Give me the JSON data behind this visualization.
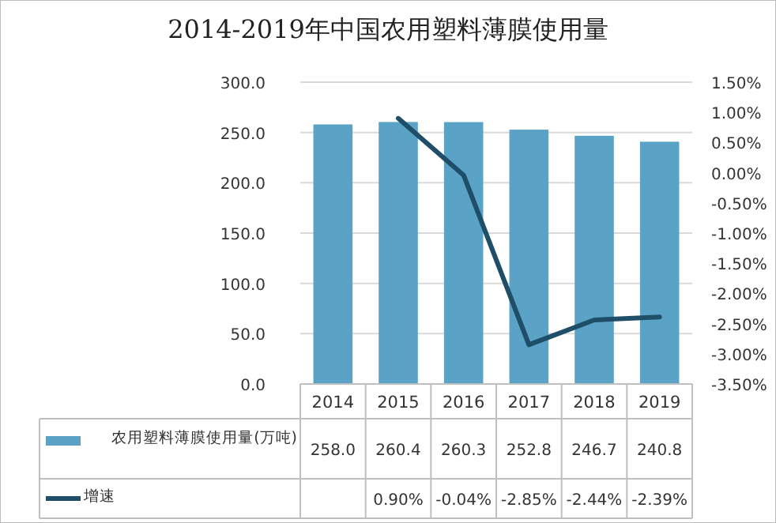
{
  "chart_data": {
    "type": "bar",
    "title": "2014-2019年中国农用塑料薄膜使用量",
    "categories": [
      "2014",
      "2015",
      "2016",
      "2017",
      "2018",
      "2019"
    ],
    "series": [
      {
        "name": "农用塑料薄膜使用量(万吨)",
        "color": "#5aa3c6",
        "values": [
          258.0,
          260.4,
          260.3,
          252.8,
          246.7,
          240.8
        ],
        "value_labels": [
          "258.0",
          "260.4",
          "260.3",
          "252.8",
          "246.7",
          "240.8"
        ]
      },
      {
        "name": "增速",
        "type": "line",
        "axis": "y2",
        "color": "#1f4e69",
        "values": [
          null,
          0.9,
          -0.04,
          -2.85,
          -2.44,
          -2.39
        ],
        "value_labels": [
          null,
          "0.90%",
          "-0.04%",
          "-2.85%",
          "-2.44%",
          "-2.39%"
        ]
      }
    ],
    "ylim": [
      0,
      300
    ],
    "yticks": [
      {
        "value": 0,
        "label": "0.0"
      },
      {
        "value": 50,
        "label": "50.0"
      },
      {
        "value": 100,
        "label": "100.0"
      },
      {
        "value": 150,
        "label": "150.0"
      },
      {
        "value": 200,
        "label": "200.0"
      },
      {
        "value": 250,
        "label": "250.0"
      },
      {
        "value": 300,
        "label": "300.0"
      }
    ],
    "y2lim": [
      -3.5,
      1.5
    ],
    "y2ticks": [
      {
        "value": -3.5,
        "label": "-3.50%"
      },
      {
        "value": -3.0,
        "label": "-3.00%"
      },
      {
        "value": -2.5,
        "label": "-2.50%"
      },
      {
        "value": -2.0,
        "label": "-2.00%"
      },
      {
        "value": -1.5,
        "label": "-1.50%"
      },
      {
        "value": -1.0,
        "label": "-1.00%"
      },
      {
        "value": -0.5,
        "label": "-0.50%"
      },
      {
        "value": 0,
        "label": "0.00%"
      },
      {
        "value": 0.5,
        "label": "0.50%"
      },
      {
        "value": 1.0,
        "label": "1.00%"
      },
      {
        "value": 1.5,
        "label": "1.50%"
      }
    ],
    "grid": "y",
    "legend": "bottom",
    "line_style": "solid",
    "marker": "none"
  }
}
